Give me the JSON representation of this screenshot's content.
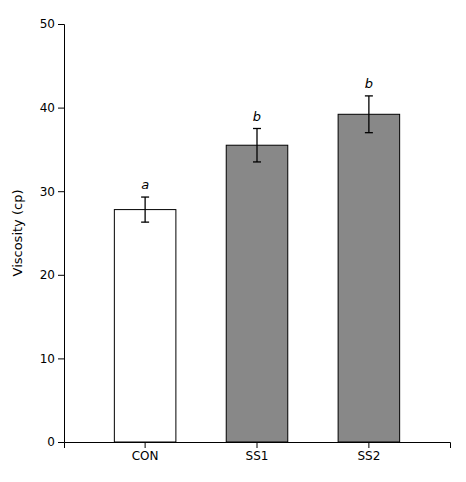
{
  "chart_data": {
    "type": "bar",
    "categories": [
      "CON",
      "SS1",
      "SS2"
    ],
    "values": [
      27.8,
      35.5,
      39.2
    ],
    "errors": [
      1.5,
      2.0,
      2.2
    ],
    "colors": [
      "#ffffff",
      "#888888",
      "#888888"
    ],
    "annotations": [
      "a",
      "b",
      "b"
    ],
    "ylabel": "Viscosity (cp)",
    "ylim": [
      0,
      50
    ],
    "yticks": [
      0,
      10,
      20,
      30,
      40,
      50
    ],
    "grid": false
  }
}
